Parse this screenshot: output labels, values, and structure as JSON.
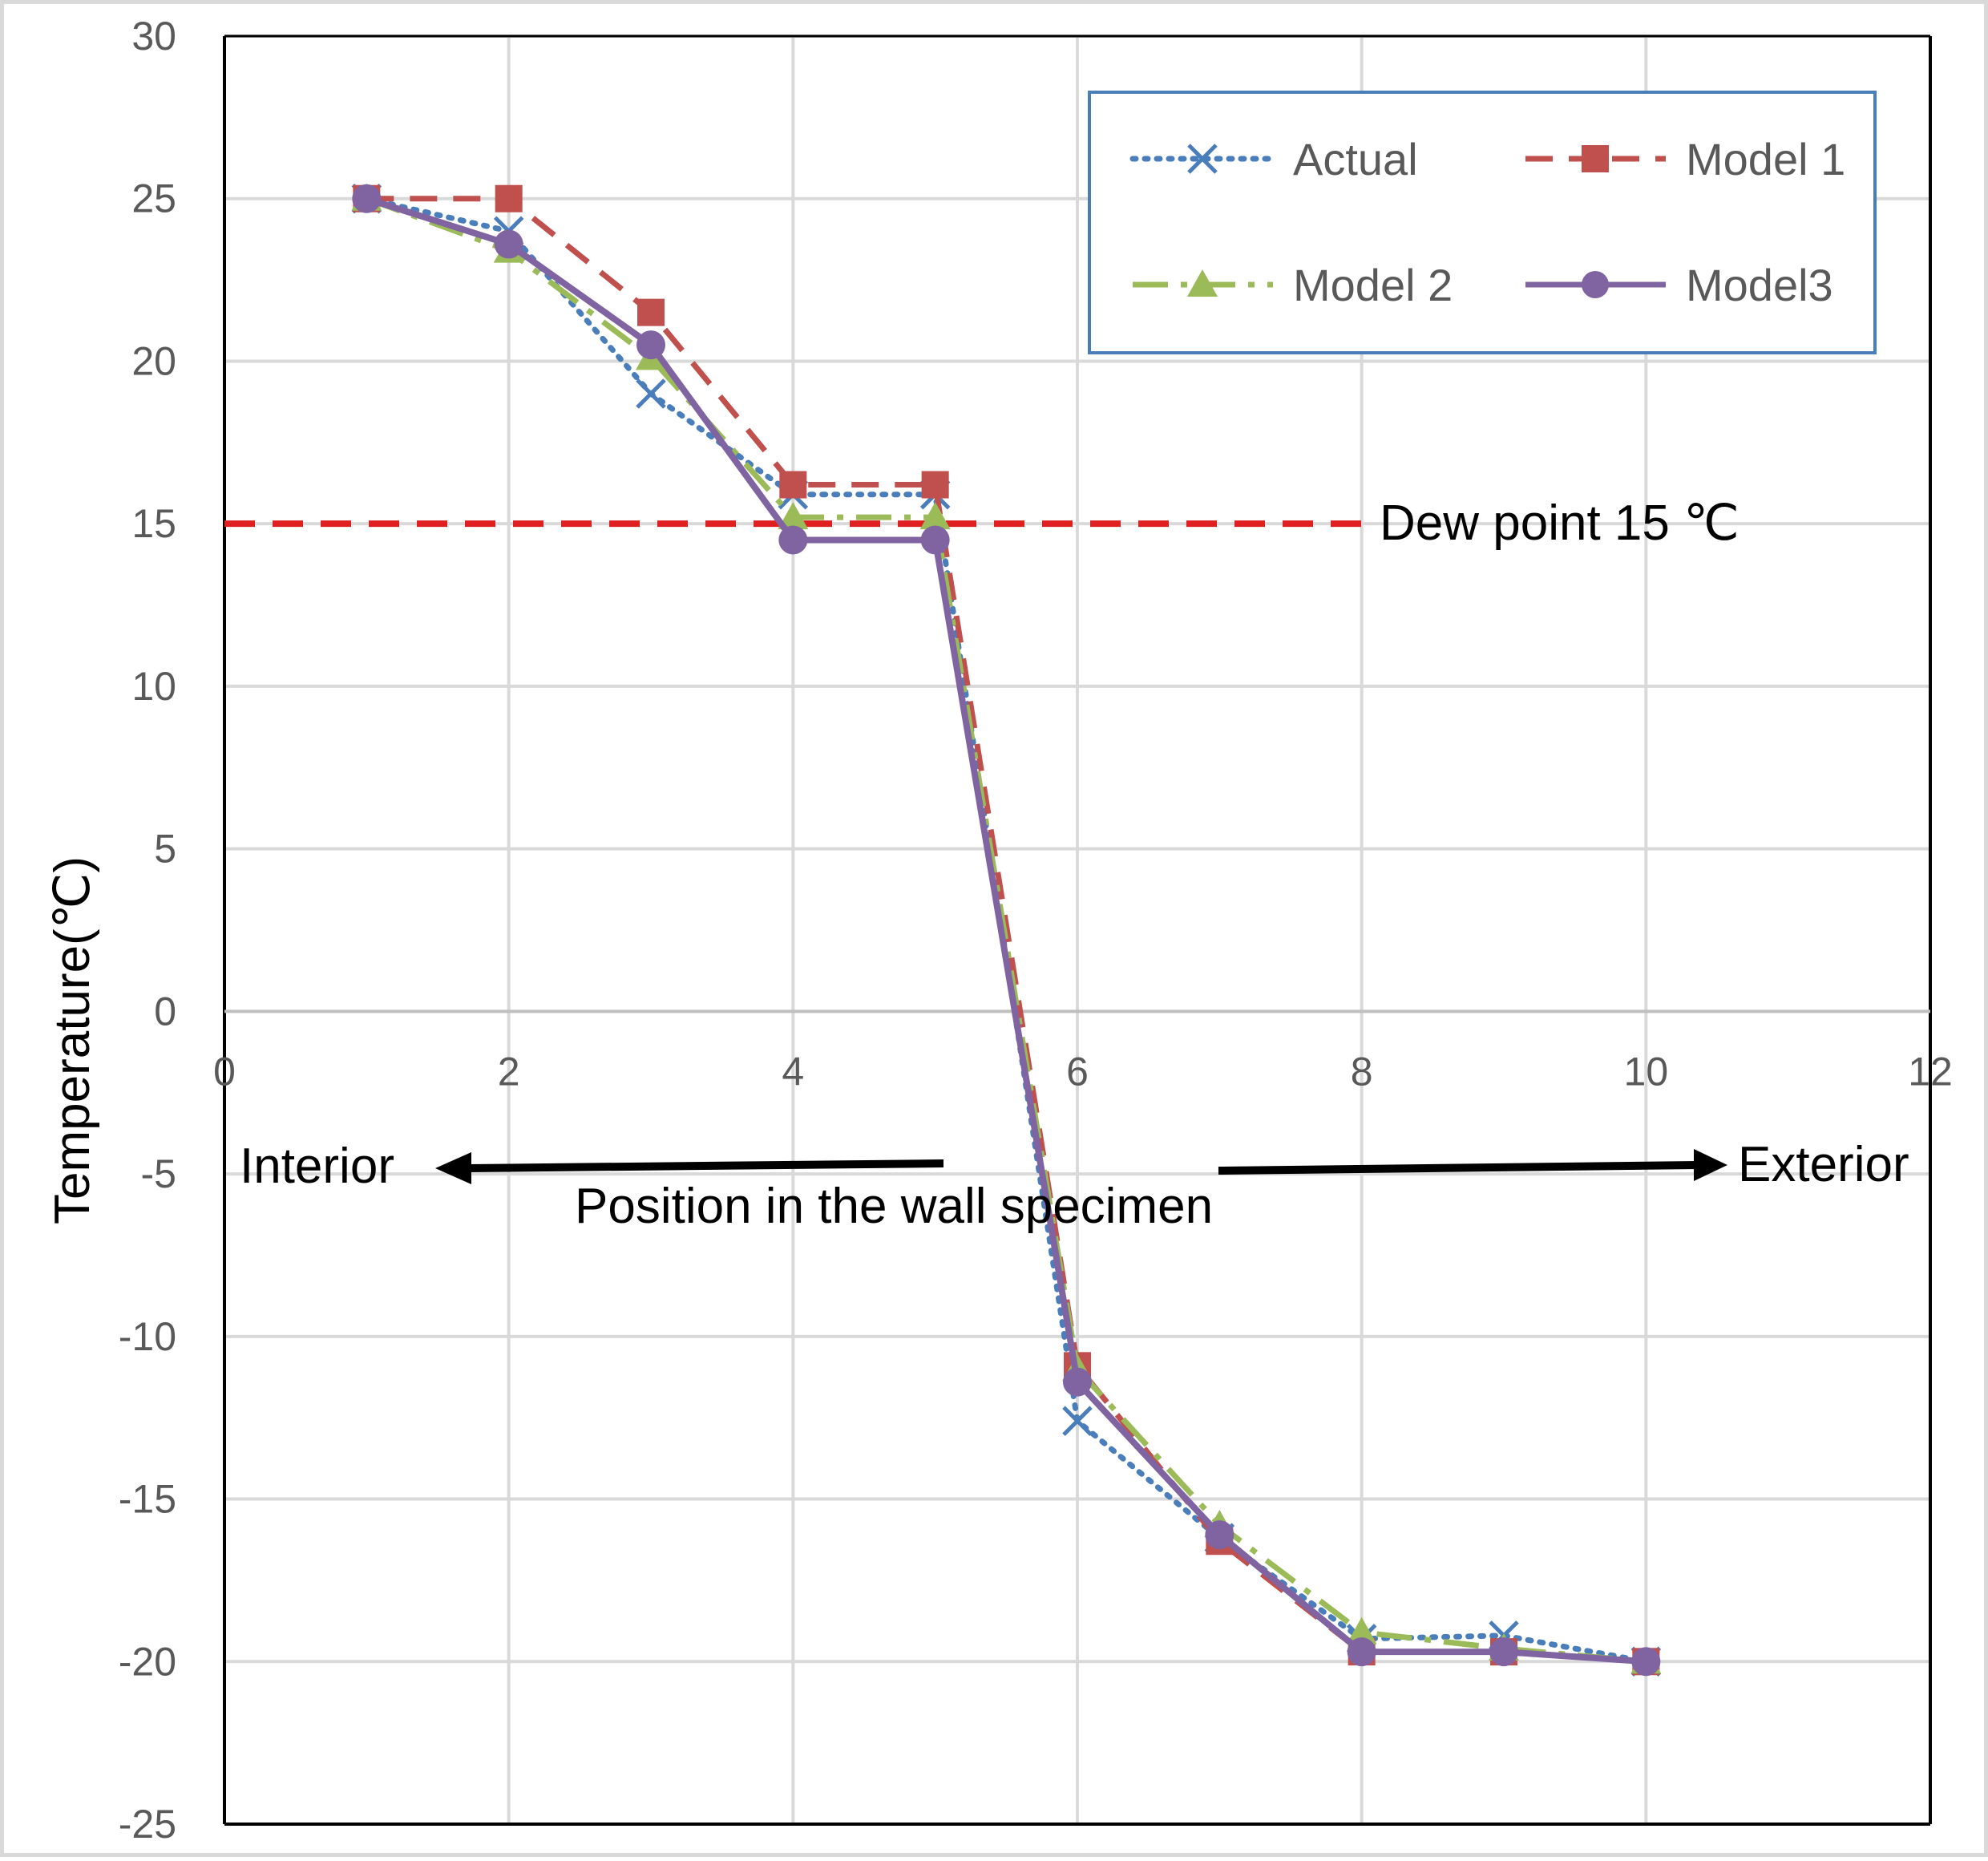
{
  "chart_data": {
    "type": "line",
    "ylabel": "Temperature(℃)",
    "xlabel": "Position in the wall specimen",
    "xlim": [
      0,
      12
    ],
    "ylim": [
      -25,
      30
    ],
    "xticks": [
      "0",
      "2",
      "4",
      "6",
      "8",
      "10",
      "12"
    ],
    "yticks": [
      "30",
      "25",
      "20",
      "15",
      "10",
      "5",
      "0",
      "-5",
      "-10",
      "-15",
      "-20",
      "-25"
    ],
    "x": [
      1,
      2,
      3,
      4,
      5,
      6,
      7,
      8,
      9,
      10
    ],
    "series": [
      {
        "name": "Actual",
        "color": "#4a7ebb",
        "style": "dotted",
        "marker": "x",
        "values": [
          25,
          24,
          19,
          15.9,
          15.9,
          -12.6,
          -16.2,
          -19.3,
          -19.2,
          -20
        ]
      },
      {
        "name": "Model 1",
        "color": "#c0504d",
        "style": "dashed",
        "marker": "square",
        "values": [
          25,
          25,
          21.5,
          16.2,
          16.2,
          -10.9,
          -16.3,
          -19.7,
          -19.7,
          -20
        ]
      },
      {
        "name": "Model 2",
        "color": "#9bbb59",
        "style": "dashdot",
        "marker": "triangle",
        "values": [
          25,
          23.4,
          20.1,
          15.2,
          15.2,
          -11,
          -15.8,
          -19.1,
          -19.6,
          -20
        ]
      },
      {
        "name": "Model3",
        "color": "#8064a2",
        "style": "solid",
        "marker": "circle",
        "values": [
          25,
          23.6,
          20.5,
          14.5,
          14.5,
          -11.4,
          -16.1,
          -19.7,
          -19.7,
          -20
        ]
      }
    ],
    "reference_line": {
      "y": 15,
      "label": "Dew point 15 ℃",
      "color": "#e02020"
    },
    "annotations": {
      "interior": "Interior",
      "exterior": "Exterior"
    },
    "grid": true,
    "legend_position": "top-right"
  }
}
